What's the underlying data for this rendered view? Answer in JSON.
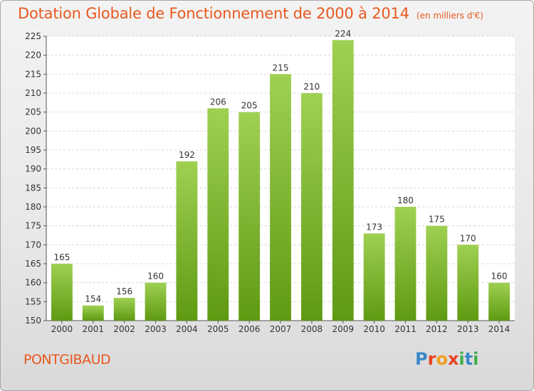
{
  "header": {
    "title": "Dotation Globale de Fonctionnement de 2000 à 2014",
    "unit_note": "(en milliers d'€)"
  },
  "footer": {
    "commune": "PONTGIBAUD",
    "brand": "Proxiti",
    "brand_colors": [
      "#3a87c8",
      "#e8401f",
      "#f0a020",
      "#e8401f",
      "#3fae49",
      "#3a87c8",
      "#3fae49"
    ]
  },
  "colors": {
    "bar_light": "#9fd052",
    "bar_dark": "#5f9a12",
    "accent": "#e8581f"
  },
  "chart_data": {
    "type": "bar",
    "title": "Dotation Globale de Fonctionnement de 2000 à 2014",
    "subtitle": "(en milliers d'€)",
    "categories": [
      "2000",
      "2001",
      "2002",
      "2003",
      "2004",
      "2005",
      "2006",
      "2007",
      "2008",
      "2009",
      "2010",
      "2011",
      "2012",
      "2013",
      "2014"
    ],
    "values": [
      165,
      154,
      156,
      160,
      192,
      206,
      205,
      215,
      210,
      224,
      173,
      180,
      175,
      170,
      160
    ],
    "ylim": [
      150,
      225
    ],
    "yticks": [
      150,
      155,
      160,
      165,
      170,
      175,
      180,
      185,
      190,
      195,
      200,
      205,
      210,
      215,
      220,
      225
    ],
    "grid": true,
    "legend": "none"
  }
}
